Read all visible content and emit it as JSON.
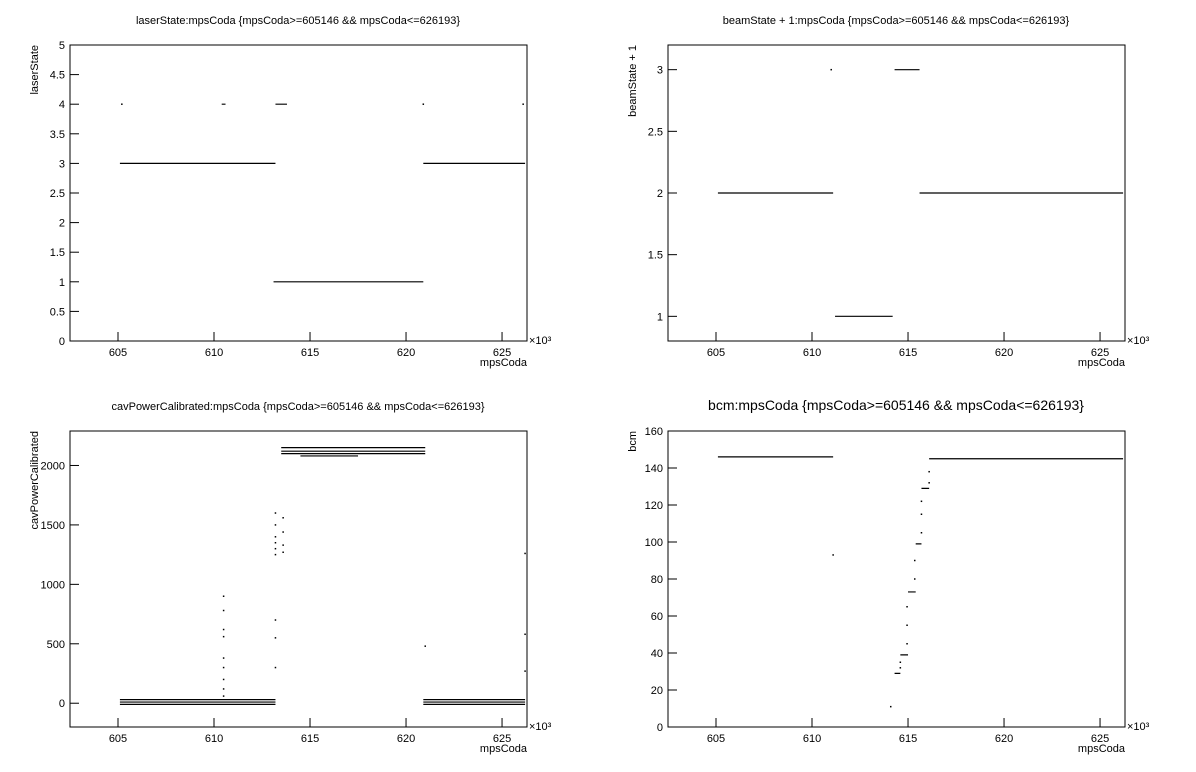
{
  "chart_data": [
    {
      "type": "line",
      "title": "laserState:mpsCoda {mpsCoda>=605146 && mpsCoda<=626193}",
      "x_label": "mpsCoda",
      "y_label": "laserState",
      "x_multiplier": "×10³",
      "color": "#000000",
      "xlim": [
        602.5,
        626.3
      ],
      "xticks": [
        605,
        610,
        615,
        620,
        625
      ],
      "ylim": [
        0,
        5
      ],
      "yticks": [
        0,
        0.5,
        1,
        1.5,
        2,
        2.5,
        3,
        3.5,
        4,
        4.5,
        5
      ],
      "x": [
        610.4,
        610.6,
        null,
        613.2,
        613.8,
        null,
        605.1,
        613.2,
        null,
        620.9,
        626.2,
        null,
        613.1,
        620.9
      ],
      "values": [
        4,
        4,
        null,
        4,
        4,
        null,
        3,
        3,
        null,
        3,
        3,
        null,
        1,
        1
      ],
      "scatter": {
        "x": [
          605.2,
          620.9,
          626.1
        ],
        "values": [
          4,
          4,
          4
        ]
      }
    },
    {
      "type": "line",
      "title": "beamState + 1:mpsCoda {mpsCoda>=605146 && mpsCoda<=626193}",
      "x_label": "mpsCoda",
      "y_label": "beamState + 1",
      "x_multiplier": "×10³",
      "color": "#000000",
      "xlim": [
        602.5,
        626.3
      ],
      "xticks": [
        605,
        610,
        615,
        620,
        625
      ],
      "ylim": [
        0.8,
        3.2
      ],
      "yticks": [
        1,
        1.5,
        2,
        2.5,
        3
      ],
      "x": [
        605.1,
        611.1,
        null,
        615.6,
        626.2,
        null,
        614.3,
        615.6,
        null,
        611.2,
        614.2
      ],
      "values": [
        2,
        2,
        null,
        2,
        2,
        null,
        3,
        3,
        null,
        1,
        1
      ],
      "scatter": {
        "x": [
          611.0
        ],
        "values": [
          3
        ]
      }
    },
    {
      "type": "line",
      "title": "cavPowerCalibrated:mpsCoda {mpsCoda>=605146 && mpsCoda<=626193}",
      "x_label": "mpsCoda",
      "y_label": "cavPowerCalibrated",
      "x_multiplier": "×10³",
      "color": "#000000",
      "xlim": [
        602.5,
        626.3
      ],
      "xticks": [
        605,
        610,
        615,
        620,
        625
      ],
      "ylim": [
        -200,
        2290
      ],
      "yticks": [
        0,
        500,
        1000,
        1500,
        2000
      ],
      "x": [
        605.1,
        613.2,
        null,
        605.1,
        613.2,
        null,
        605.1,
        613.2,
        null,
        620.9,
        626.2,
        null,
        620.9,
        626.2,
        null,
        620.9,
        626.2,
        null,
        613.5,
        621.0,
        null,
        613.5,
        621.0,
        null,
        613.5,
        621.0,
        null,
        614.5,
        617.5
      ],
      "values": [
        30,
        30,
        null,
        10,
        10,
        null,
        -10,
        -10,
        null,
        30,
        30,
        null,
        10,
        10,
        null,
        -10,
        -10,
        null,
        2150,
        2150,
        null,
        2120,
        2120,
        null,
        2100,
        2100,
        null,
        2080,
        2080
      ],
      "scatter": {
        "x": [
          610.5,
          610.5,
          610.5,
          610.5,
          610.5,
          610.5,
          610.5,
          610.5,
          610.5,
          613.2,
          613.2,
          613.2,
          613.2,
          613.2,
          613.2,
          613.2,
          613.2,
          613.2,
          613.6,
          613.6,
          613.6,
          613.6,
          621.0,
          626.2,
          626.2,
          626.2
        ],
        "values": [
          900,
          780,
          620,
          560,
          380,
          300,
          200,
          120,
          60,
          1600,
          1500,
          1400,
          1350,
          1300,
          1250,
          700,
          550,
          300,
          1560,
          1440,
          1330,
          1270,
          480,
          1260,
          580,
          270
        ]
      }
    },
    {
      "type": "line",
      "title": "bcm:mpsCoda {mpsCoda>=605146 && mpsCoda<=626193}",
      "x_label": "mpsCoda",
      "y_label": "bcm",
      "x_multiplier": "×10³",
      "color": "#000000",
      "xlim": [
        602.5,
        626.3
      ],
      "xticks": [
        605,
        610,
        615,
        620,
        625
      ],
      "ylim": [
        0,
        160
      ],
      "yticks": [
        0,
        20,
        40,
        60,
        80,
        100,
        120,
        140,
        160
      ],
      "x": [
        605.1,
        611.1,
        null,
        614.3,
        614.6,
        null,
        614.6,
        615.0,
        null,
        615.0,
        615.4,
        null,
        615.4,
        615.7,
        null,
        615.7,
        616.1,
        null,
        616.1,
        626.2
      ],
      "values": [
        146,
        146,
        null,
        29,
        29,
        null,
        39,
        39,
        null,
        73,
        73,
        null,
        99,
        99,
        null,
        129,
        129,
        null,
        145,
        145
      ],
      "scatter": {
        "x": [
          611.1,
          614.1,
          614.6,
          614.6,
          614.95,
          614.95,
          614.95,
          615.35,
          615.35,
          615.7,
          615.7,
          615.7,
          616.1,
          616.1
        ],
        "values": [
          93,
          11,
          32,
          35,
          45,
          55,
          65,
          80,
          90,
          105,
          115,
          122,
          132,
          138
        ]
      }
    }
  ]
}
